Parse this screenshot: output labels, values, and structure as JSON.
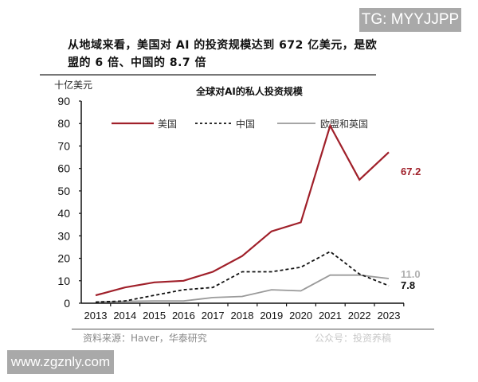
{
  "watermark_top": "TG: MYYJJPP",
  "headline": "从地域来看，美国对 AI 的投资规模达到 672 亿美元，是欧盟的 6 倍、中国的 8.7 倍",
  "source": "资料来源：Haver，华泰研究",
  "watermark_mid": "公众号：投资养稿",
  "watermark_bottom": "www.zgznly.com",
  "colors": {
    "us": "#a0202a",
    "china": "#111111",
    "eu_uk": "#9a9a9a"
  },
  "chart_data": {
    "type": "line",
    "title": "全球对AI的私人投资规模",
    "xlabel": "",
    "ylabel": "十亿美元",
    "ylim": [
      0,
      90
    ],
    "yticks": [
      0,
      10,
      20,
      30,
      40,
      50,
      60,
      70,
      80,
      90
    ],
    "grid": false,
    "legend_position": "top",
    "categories": [
      "2013",
      "2014",
      "2015",
      "2016",
      "2017",
      "2018",
      "2019",
      "2020",
      "2021",
      "2022",
      "2023"
    ],
    "series": [
      {
        "name": "美国",
        "style": "solid",
        "color": "#a0202a",
        "values": [
          3.5,
          7.0,
          9.3,
          10.0,
          14.0,
          21.0,
          32.0,
          36.0,
          79.0,
          55.0,
          67.2
        ],
        "end_label": "67.2"
      },
      {
        "name": "中国",
        "style": "dashed",
        "color": "#111111",
        "values": [
          0.5,
          1.0,
          3.5,
          6.0,
          7.0,
          14.0,
          14.0,
          16.0,
          23.0,
          13.0,
          7.8
        ],
        "end_label": "7.8"
      },
      {
        "name": "欧盟和英国",
        "style": "solid",
        "color": "#9a9a9a",
        "values": [
          0.5,
          0.8,
          1.0,
          1.0,
          2.5,
          3.0,
          6.0,
          5.5,
          12.5,
          12.5,
          11.0
        ],
        "end_label": "11.0"
      }
    ]
  }
}
